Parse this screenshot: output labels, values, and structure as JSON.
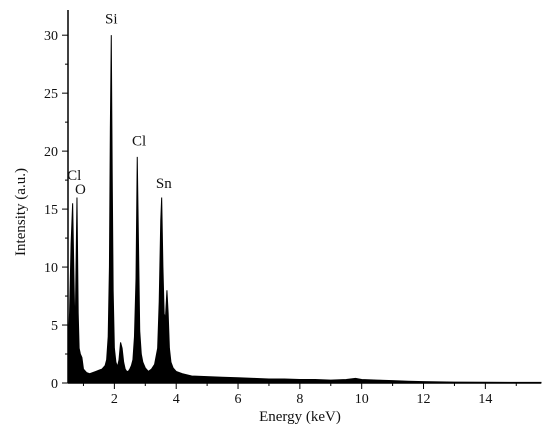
{
  "chart_data": {
    "type": "area",
    "title": "",
    "xlabel": "Energy (keV)",
    "ylabel": "Intensity (a.u.)",
    "xlim": [
      0.5,
      15.8
    ],
    "ylim": [
      0,
      32
    ],
    "x_ticks": [
      2,
      4,
      6,
      8,
      10,
      12,
      14
    ],
    "y_ticks": [
      0,
      5,
      10,
      15,
      20,
      25,
      30
    ],
    "grid": false,
    "legend": "none",
    "series": [
      {
        "color": "#000000",
        "x": [
          0.5,
          0.55,
          0.6,
          0.65,
          0.7,
          0.73,
          0.76,
          0.79,
          0.83,
          0.86,
          0.9,
          0.95,
          1.0,
          1.1,
          1.2,
          1.3,
          1.4,
          1.5,
          1.6,
          1.7,
          1.75,
          1.8,
          1.84,
          1.87,
          1.9,
          1.93,
          1.96,
          2.0,
          2.05,
          2.1,
          2.15,
          2.2,
          2.25,
          2.3,
          2.35,
          2.4,
          2.45,
          2.5,
          2.55,
          2.6,
          2.65,
          2.7,
          2.74,
          2.78,
          2.82,
          2.87,
          2.92,
          3.0,
          3.1,
          3.2,
          3.3,
          3.4,
          3.45,
          3.5,
          3.53,
          3.57,
          3.61,
          3.65,
          3.7,
          3.74,
          3.78,
          3.83,
          3.9,
          4.0,
          4.2,
          4.5,
          5.0,
          5.5,
          6.0,
          6.5,
          7.0,
          7.5,
          8.0,
          8.5,
          9.0,
          9.5,
          9.8,
          10.0,
          10.5,
          11.0,
          11.5,
          12.0,
          12.5,
          13.0,
          14.0,
          15.0,
          15.8
        ],
        "y": [
          3.0,
          6.0,
          12.0,
          15.5,
          8.0,
          4.0,
          10.0,
          16.0,
          6.0,
          3.0,
          2.5,
          2.2,
          1.2,
          0.9,
          0.8,
          0.9,
          1.0,
          1.1,
          1.2,
          1.5,
          2.0,
          4.0,
          10.0,
          22.0,
          30.0,
          18.0,
          8.0,
          3.0,
          1.8,
          1.4,
          2.0,
          3.5,
          3.0,
          1.8,
          1.2,
          1.0,
          1.0,
          1.2,
          1.5,
          2.0,
          4.0,
          9.0,
          19.5,
          12.0,
          4.5,
          2.5,
          1.8,
          1.3,
          1.0,
          1.2,
          1.6,
          3.0,
          7.0,
          14.0,
          16.0,
          10.0,
          6.0,
          5.5,
          8.0,
          6.0,
          3.0,
          1.8,
          1.3,
          1.0,
          0.8,
          0.6,
          0.55,
          0.5,
          0.45,
          0.4,
          0.35,
          0.35,
          0.3,
          0.3,
          0.25,
          0.3,
          0.4,
          0.3,
          0.25,
          0.2,
          0.15,
          0.12,
          0.1,
          0.08,
          0.06,
          0.05,
          0.05
        ]
      }
    ],
    "annotations": [
      {
        "text": "Cl",
        "x": 0.7,
        "y": 17.5
      },
      {
        "text": "O",
        "x": 0.9,
        "y": 16.3
      },
      {
        "text": "Si",
        "x": 1.9,
        "y": 31.0
      },
      {
        "text": "Cl",
        "x": 2.8,
        "y": 20.5
      },
      {
        "text": "Sn",
        "x": 3.6,
        "y": 16.8
      }
    ]
  }
}
